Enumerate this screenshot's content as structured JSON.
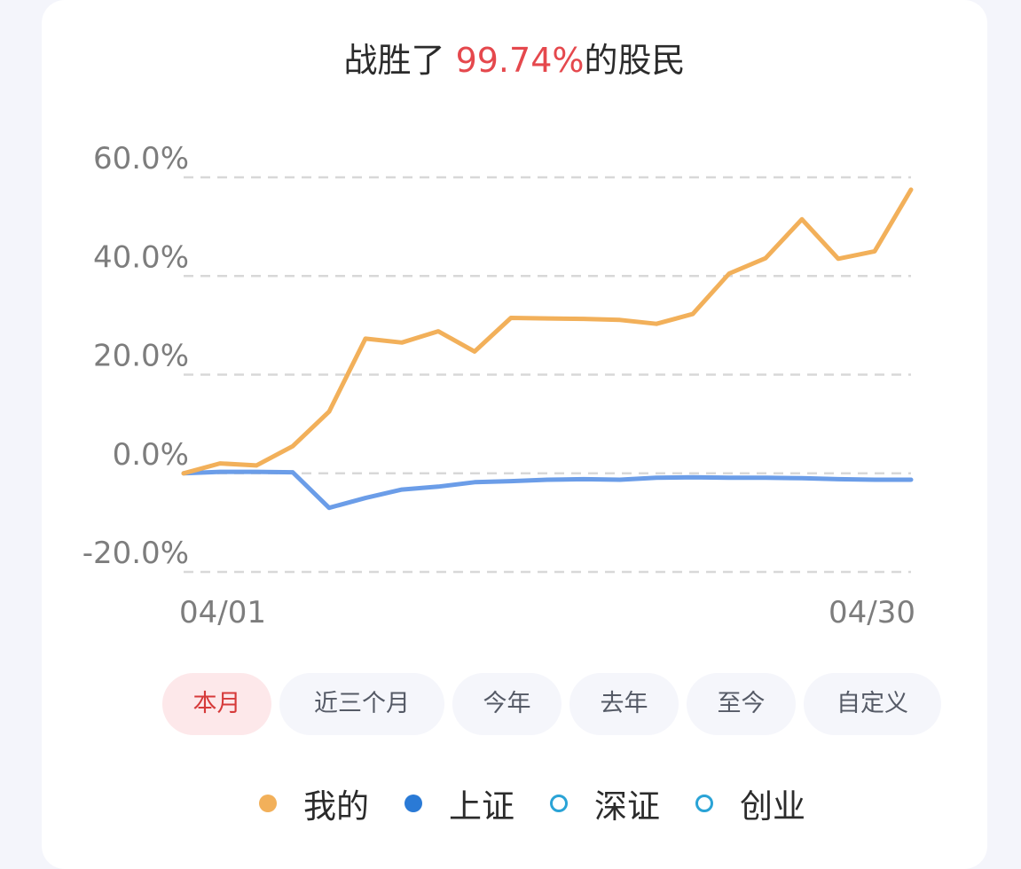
{
  "title": {
    "prefix": "战胜了 ",
    "value": "99.74%",
    "suffix": "的股民"
  },
  "colors": {
    "mine": "#f2b05a",
    "sh": "#6b9de8",
    "accent": "#e5484d",
    "grid": "#d8d8d8",
    "tick": "#7d7d7d"
  },
  "chart_data": {
    "type": "line",
    "title": "",
    "xlabel": "",
    "ylabel": "",
    "x_tick_labels": [
      "04/01",
      "04/30"
    ],
    "y_ticks": [
      60,
      40,
      20,
      0,
      -20
    ],
    "y_tick_labels": [
      "60.0%",
      "40.0%",
      "20.0%",
      "0.0%",
      "-20.0%"
    ],
    "ylim": [
      -20,
      60
    ],
    "grid": "horizontal dashed",
    "series": [
      {
        "name": "我的",
        "color": "#f2b05a",
        "values": [
          0.0,
          2.0,
          1.6,
          5.5,
          12.5,
          27.3,
          26.5,
          28.8,
          24.7,
          31.5,
          31.4,
          31.3,
          31.1,
          30.3,
          32.3,
          40.5,
          43.6,
          51.5,
          43.5,
          45.0,
          57.5
        ]
      },
      {
        "name": "上证",
        "color": "#6b9de8",
        "values": [
          0.0,
          0.3,
          0.3,
          0.2,
          -7.0,
          -5.0,
          -3.3,
          -2.7,
          -1.8,
          -1.6,
          -1.3,
          -1.2,
          -1.3,
          -0.9,
          -0.8,
          -0.9,
          -0.9,
          -1.0,
          -1.2,
          -1.3,
          -1.3
        ]
      }
    ]
  },
  "ranges": [
    "本月",
    "近三个月",
    "今年",
    "去年",
    "至今",
    "自定义"
  ],
  "legend": [
    {
      "label": "我的",
      "style": "filled",
      "color": "#f2b05a"
    },
    {
      "label": "上证",
      "style": "filled",
      "color": "#2a7ad6"
    },
    {
      "label": "深证",
      "style": "outline",
      "color": "#2aa3d6"
    },
    {
      "label": "创业",
      "style": "outline",
      "color": "#2aa3d6"
    }
  ]
}
